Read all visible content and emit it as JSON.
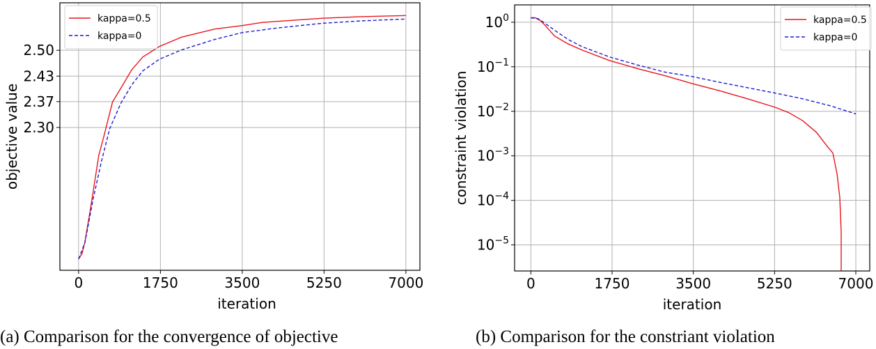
{
  "chart_data": [
    {
      "type": "line",
      "caption": "(a) Comparison for the convergence of objective",
      "xlabel": "iteration",
      "ylabel": "objective value",
      "xlim": [
        -400,
        7300
      ],
      "ylim": [
        1.93,
        2.623
      ],
      "yscale": "linear",
      "xticks": [
        0,
        1750,
        3500,
        5250,
        7000
      ],
      "xtick_labels": [
        "0",
        "1750",
        "3500",
        "5250",
        "7000"
      ],
      "yticks": [
        2.3,
        2.367,
        2.433,
        2.5
      ],
      "ytick_labels": [
        "2.30",
        "2.37",
        "2.43",
        "2.50"
      ],
      "grid": true,
      "legend_position": "top-left",
      "series": [
        {
          "name": "kappa=0.5",
          "color": "#e8141c",
          "style": "solid",
          "x": [
            0,
            77,
            136,
            254,
            431,
            549,
            726,
            904,
            1140,
            1377,
            1731,
            2204,
            2913,
            3504,
            3918,
            4272,
            5217,
            6044,
            7000
          ],
          "y": [
            1.959,
            1.974,
            2.004,
            2.089,
            2.227,
            2.281,
            2.366,
            2.402,
            2.45,
            2.483,
            2.51,
            2.534,
            2.555,
            2.564,
            2.572,
            2.575,
            2.583,
            2.587,
            2.59
          ]
        },
        {
          "name": "kappa=0",
          "color": "#1a1ad6",
          "style": "dashed",
          "x": [
            0,
            136,
            313,
            490,
            667,
            904,
            1140,
            1377,
            1731,
            2204,
            2913,
            3504,
            4272,
            5217,
            6044,
            7000
          ],
          "y": [
            1.959,
            2.002,
            2.116,
            2.213,
            2.297,
            2.363,
            2.411,
            2.447,
            2.477,
            2.501,
            2.528,
            2.546,
            2.558,
            2.57,
            2.576,
            2.581
          ]
        }
      ]
    },
    {
      "type": "line",
      "caption": "(b) Comparison for the constriant violation",
      "xlabel": "iteration",
      "ylabel": "constraint violation",
      "xlim": [
        -350,
        7300
      ],
      "ylim": [
        2.6e-06,
        2.45
      ],
      "yscale": "log",
      "xticks": [
        0,
        1750,
        3500,
        5250,
        7000
      ],
      "xtick_labels": [
        "0",
        "1750",
        "3500",
        "5250",
        "7000"
      ],
      "yticks": [
        1,
        0.1,
        0.01,
        0.001,
        0.0001,
        1e-05
      ],
      "ytick_labels": [
        "10^0",
        "10^−1",
        "10^−2",
        "10^−3",
        "10^−4",
        "10^−5"
      ],
      "grid": true,
      "legend_position": "top-right",
      "series": [
        {
          "name": "kappa=0.5",
          "color": "#e8141c",
          "style": "solid",
          "x": [
            0,
            95,
            214,
            332,
            511,
            807,
            1104,
            1698,
            2292,
            2886,
            3480,
            4073,
            4667,
            5261,
            5557,
            5854,
            6150,
            6388,
            6507,
            6596,
            6655,
            6685,
            6685
          ],
          "y": [
            1.26,
            1.26,
            1.07,
            0.794,
            0.49,
            0.324,
            0.237,
            0.138,
            0.0912,
            0.0631,
            0.0417,
            0.0288,
            0.0191,
            0.0123,
            0.00933,
            0.00617,
            0.00339,
            0.00162,
            0.00115,
            0.000389,
            0.000117,
            1.95e-05,
            2.5e-06
          ]
        },
        {
          "name": "kappa=0",
          "color": "#1a1ad6",
          "style": "dashed",
          "x": [
            0,
            154,
            273,
            511,
            807,
            1104,
            1698,
            2292,
            2886,
            3480,
            4073,
            4667,
            5261,
            5854,
            6448,
            7000
          ],
          "y": [
            1.26,
            1.2,
            1.0,
            0.661,
            0.407,
            0.282,
            0.166,
            0.11,
            0.0759,
            0.0603,
            0.0447,
            0.0339,
            0.0257,
            0.0191,
            0.0133,
            0.0087
          ]
        }
      ]
    }
  ]
}
